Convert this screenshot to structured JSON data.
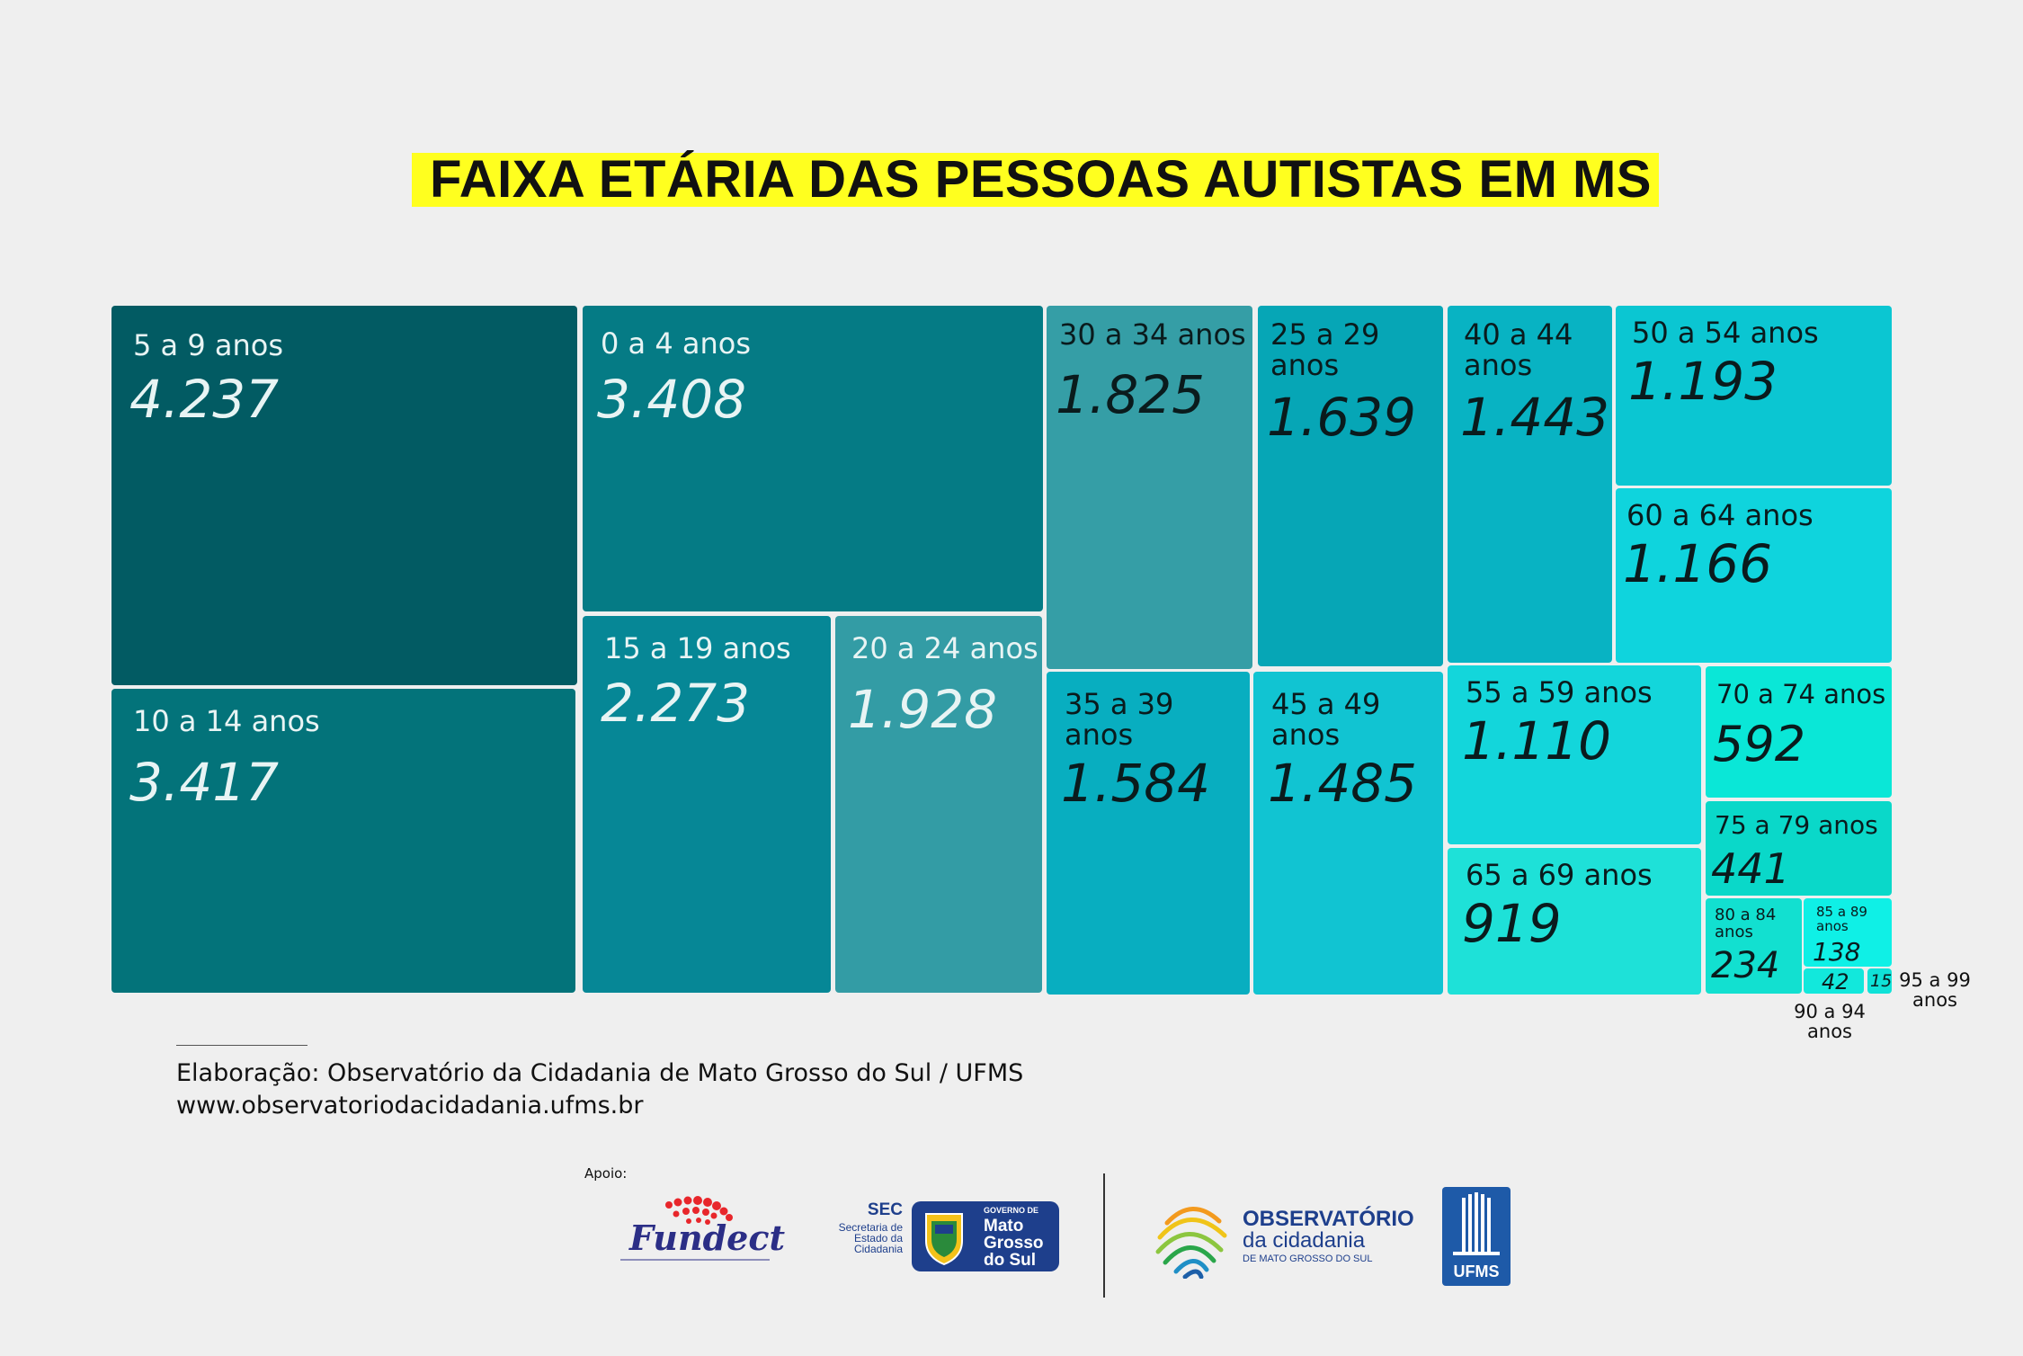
{
  "title": "FAIXA ETÁRIA DAS PESSOAS AUTISTAS EM MS",
  "chart_data": {
    "type": "treemap",
    "title": "FAIXA ETÁRIA DAS PESSOAS AUTISTAS EM MS",
    "items": [
      {
        "label": "5 a 9 anos",
        "value_label": "4.237",
        "value": 4237,
        "color": "#025b63"
      },
      {
        "label": "10 a 14 anos",
        "value_label": "3.417",
        "value": 3417,
        "color": "#03737a"
      },
      {
        "label": "0 a 4 anos",
        "value_label": "3.408",
        "value": 3408,
        "color": "#057b85"
      },
      {
        "label": "15 a 19 anos",
        "value_label": "2.273",
        "value": 2273,
        "color": "#068796"
      },
      {
        "label": "20 a 24 anos",
        "value_label": "1.928",
        "value": 1928,
        "color": "#339ca5"
      },
      {
        "label": "30 a 34 anos",
        "value_label": "1.825",
        "value": 1825,
        "color": "#359ea6"
      },
      {
        "label": "25 a 29 anos",
        "value_label": "1.639",
        "value": 1639,
        "color": "#06a6b6"
      },
      {
        "label": "35 a 39 anos",
        "value_label": "1.584",
        "value": 1584,
        "color": "#08aec0"
      },
      {
        "label": "45 a 49 anos",
        "value_label": "1.485",
        "value": 1485,
        "color": "#11c4d2"
      },
      {
        "label": "40 a 44 anos",
        "value_label": "1.443",
        "value": 1443,
        "color": "#08b3c3"
      },
      {
        "label": "50 a 54 anos",
        "value_label": "1.193",
        "value": 1193,
        "color": "#0bc6d2"
      },
      {
        "label": "60 a 64 anos",
        "value_label": "1.166",
        "value": 1166,
        "color": "#0fd4dd"
      },
      {
        "label": "55 a 59 anos",
        "value_label": "1.110",
        "value": 1110,
        "color": "#13d6db"
      },
      {
        "label": "65 a 69 anos",
        "value_label": "919",
        "value": 919,
        "color": "#1ee1d8"
      },
      {
        "label": "70 a 74 anos",
        "value_label": "592",
        "value": 592,
        "color": "#0ae7d7"
      },
      {
        "label": "75 a 79 anos",
        "value_label": "441",
        "value": 441,
        "color": "#0ad8c9"
      },
      {
        "label": "80 a 84 anos",
        "value_label": "234",
        "value": 234,
        "color": "#12e0d0"
      },
      {
        "label": "85 a 89 anos",
        "value_label": "138",
        "value": 138,
        "color": "#0ff0e6"
      },
      {
        "label": "90 a 94 anos",
        "value_label": "42",
        "value": 42,
        "color": "#12e8dc"
      },
      {
        "label": "95 a 99 anos",
        "value_label": "15",
        "value": 15,
        "color": "#10e2d8"
      }
    ]
  },
  "footer": {
    "credit": "Elaboração: Observatório da Cidadania de Mato Grosso do Sul / UFMS",
    "url": "www.observatoriodacidadania.ufms.br",
    "apoio": "Apoio:"
  },
  "logos": {
    "fundect": "Fundect",
    "sec_short": "SEC",
    "sec_line1": "Secretaria de",
    "sec_line2": "Estado da",
    "sec_line3": "Cidadania",
    "gov_line1": "GOVERNO DE",
    "gov_line2": "Mato",
    "gov_line3": "Grosso",
    "gov_line4": "do Sul",
    "obs_line1": "OBSERVATÓRIO",
    "obs_line2": "da cidadania",
    "obs_line3": "DE MATO GROSSO DO SUL",
    "ufms": "UFMS"
  }
}
